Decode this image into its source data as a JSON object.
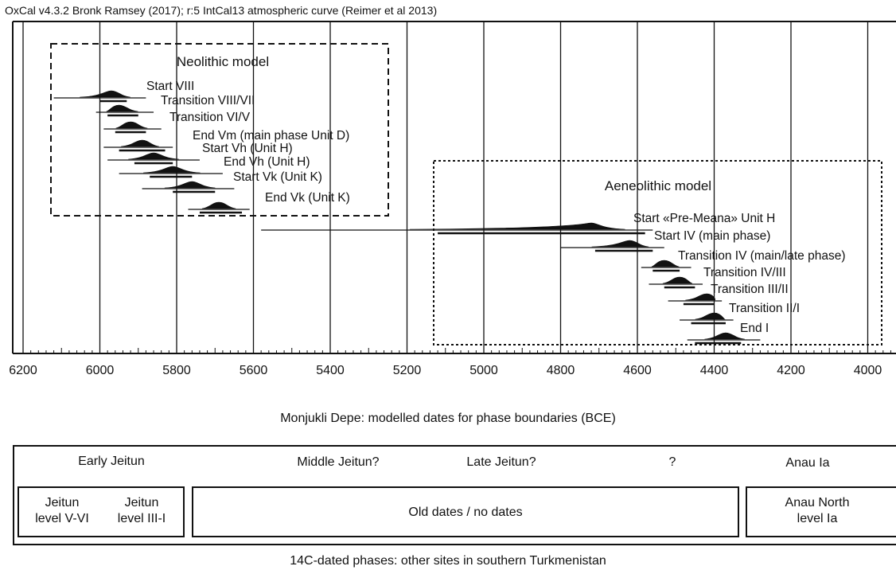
{
  "chart_data": {
    "type": "oxcal-multiplot",
    "header": "OxCal v4.3.2 Bronk Ramsey (2017); r:5 IntCal13 atmospheric curve (Reimer et al 2013)",
    "xlabel": "Monjukli Depe: modelled dates for phase boundaries (BCE)",
    "x_ticks": [
      6200,
      6000,
      5800,
      5600,
      5400,
      5200,
      5000,
      4800,
      4600,
      4400,
      4200,
      4000
    ],
    "xlim": [
      6200,
      4000
    ],
    "x_reversed": true,
    "grid": true,
    "groups": [
      {
        "name": "Neolithic model",
        "style": "dashed"
      },
      {
        "name": "Aeneolithic model",
        "style": "dotted"
      }
    ],
    "boundaries": [
      {
        "label": "Start VIII",
        "group": 0,
        "peak": 5970,
        "thin": [
          6120,
          5880
        ],
        "thick": [
          6000,
          5930
        ]
      },
      {
        "label": "Transition VIII/VII",
        "group": 0,
        "peak": 5950,
        "thin": [
          6010,
          5860
        ],
        "thick": [
          5980,
          5900
        ]
      },
      {
        "label": "Transition VI/V",
        "group": 0,
        "peak": 5920,
        "thin": [
          5990,
          5840
        ],
        "thick": [
          5960,
          5880
        ]
      },
      {
        "label": "End Vm (main phase Unit D)",
        "group": 0,
        "peak": 5890,
        "thin": [
          5990,
          5810
        ],
        "thick": [
          5950,
          5830
        ]
      },
      {
        "label": "Start Vh (Unit H)",
        "group": 0,
        "peak": 5860,
        "thin": [
          5980,
          5740
        ],
        "thick": [
          5910,
          5810
        ]
      },
      {
        "label": "End Vh (Unit H)",
        "group": 0,
        "peak": 5810,
        "thin": [
          5950,
          5680
        ],
        "thick": [
          5870,
          5760
        ]
      },
      {
        "label": "Start Vk (Unit K)",
        "group": 0,
        "peak": 5760,
        "thin": [
          5890,
          5650
        ],
        "thick": [
          5810,
          5700
        ]
      },
      {
        "label": "End Vk (Unit K)",
        "group": 0,
        "peak": 5690,
        "thin": [
          5770,
          5610
        ],
        "thick": [
          5740,
          5630
        ]
      },
      {
        "label": "Start «Pre-Meana» Unit H",
        "group": 1,
        "peak": 4720,
        "thin": [
          5580,
          4560
        ],
        "thick": [
          5120,
          4580
        ]
      },
      {
        "label": "Start IV (main phase)",
        "group": 1,
        "peak": 4620,
        "thin": [
          4800,
          4530
        ],
        "thick": [
          4710,
          4560
        ]
      },
      {
        "label": "Transition IV (main/late phase)",
        "group": 1,
        "peak": 4530,
        "thin": [
          4590,
          4460
        ],
        "thick": [
          4560,
          4490
        ]
      },
      {
        "label": "Transition IV/III",
        "group": 1,
        "peak": 4490,
        "thin": [
          4570,
          4430
        ],
        "thick": [
          4530,
          4450
        ]
      },
      {
        "label": "Transition III/II",
        "group": 1,
        "peak": 4420,
        "thin": [
          4520,
          4380
        ],
        "thick": [
          4480,
          4400
        ]
      },
      {
        "label": "Transition II/I",
        "group": 1,
        "peak": 4400,
        "thin": [
          4490,
          4350
        ],
        "thick": [
          4460,
          4370
        ]
      },
      {
        "label": "End I",
        "group": 1,
        "peak": 4370,
        "thin": [
          4470,
          4280
        ],
        "thick": [
          4450,
          4330
        ]
      }
    ]
  },
  "lower_panel": {
    "periods": [
      "Early Jeitun",
      "Middle Jeitun?",
      "Late Jeitun?",
      "?",
      "Anau Ia"
    ],
    "sites": {
      "jeitun_v_vi": "Jeitun\nlevel V-VI",
      "jeitun_iii_i": "Jeitun\nlevel III-I",
      "old_dates": "Old dates / no dates",
      "anau_north": "Anau North\nlevel Ia"
    },
    "caption": "14C-dated phases: other sites in southern Turkmenistan"
  }
}
